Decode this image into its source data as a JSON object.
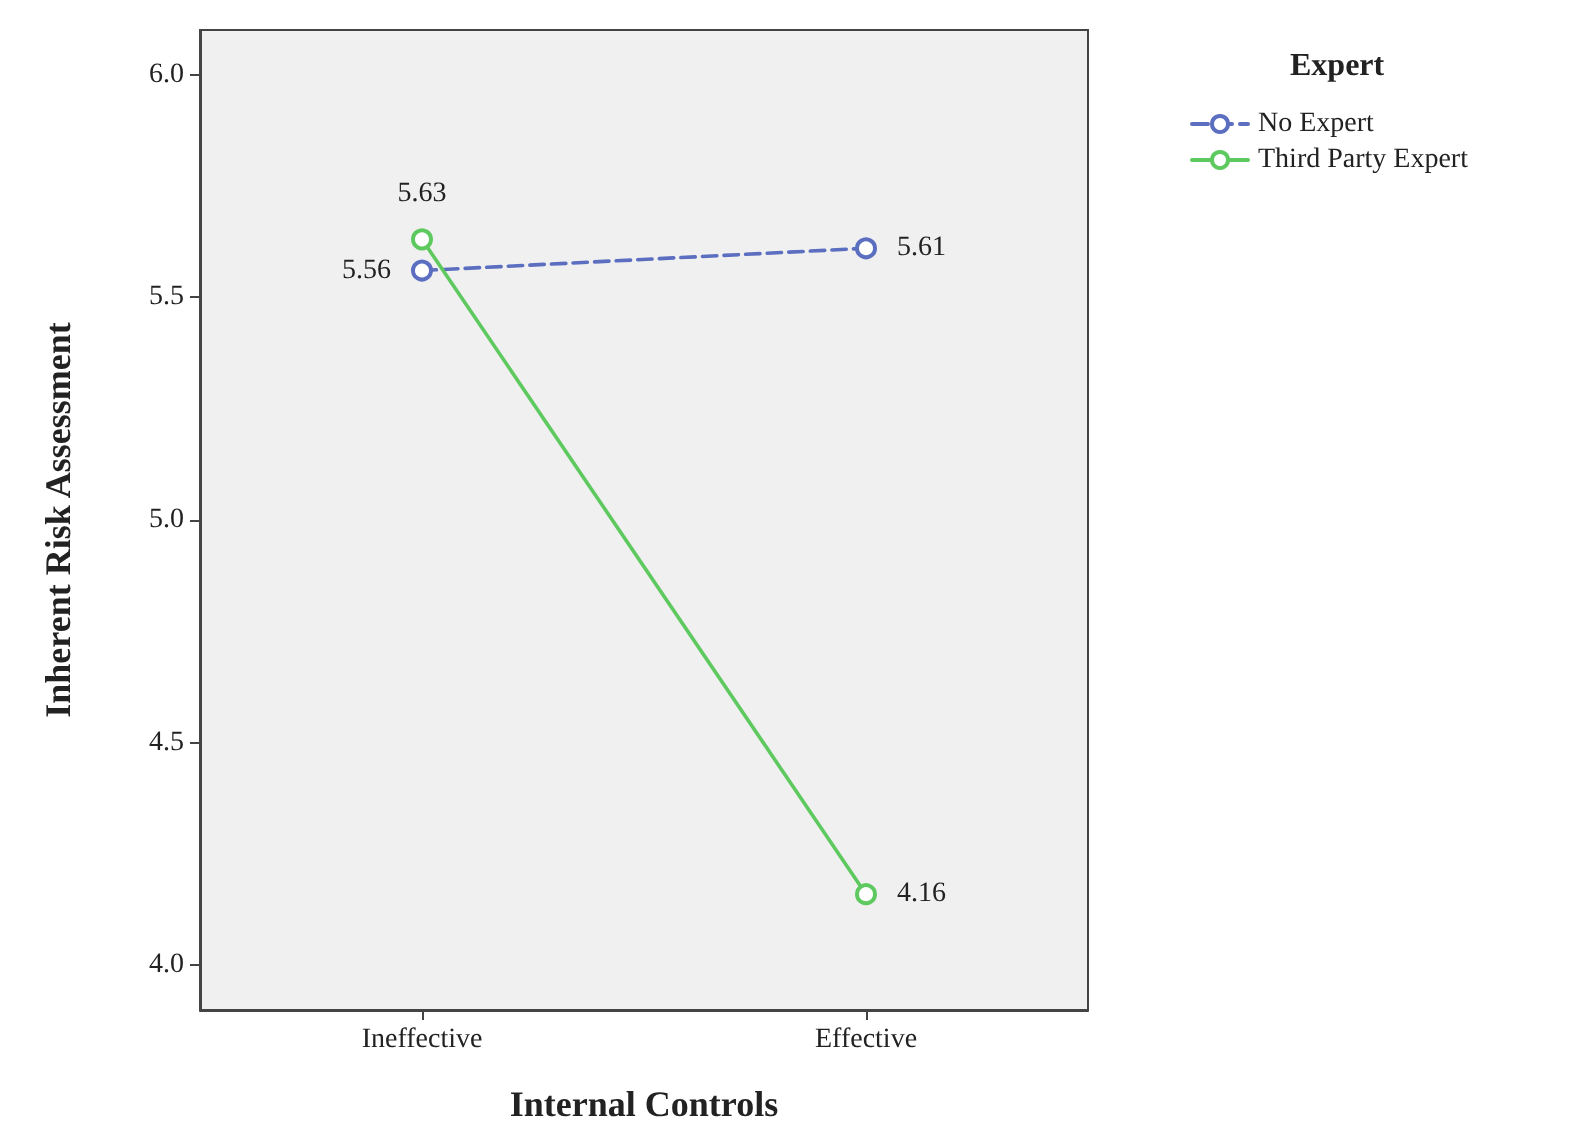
{
  "chart_data": {
    "type": "line",
    "xlabel": "Internal Controls",
    "ylabel": "Inherent Risk Assessment",
    "legend_title": "Expert",
    "categories": [
      "Ineffective",
      "Effective"
    ],
    "series": [
      {
        "name": "No Expert",
        "color": "#5b6ec0",
        "values": [
          5.56,
          5.61
        ],
        "line_style": "dashed"
      },
      {
        "name": "Third Party Expert",
        "color": "#5ec95e",
        "values": [
          5.63,
          4.16
        ],
        "line_style": "solid"
      }
    ],
    "ylim": [
      3.9,
      6.1
    ],
    "yticks": [
      {
        "value": 4,
        "label": "4.0"
      },
      {
        "value": 4.5,
        "label": "4.5"
      },
      {
        "value": 5,
        "label": "5.0"
      },
      {
        "value": 5.5,
        "label": "5.5"
      },
      {
        "value": 6,
        "label": "6.0"
      }
    ],
    "data_labels": true,
    "marker": "circle",
    "grid": false,
    "legend": "top right"
  }
}
